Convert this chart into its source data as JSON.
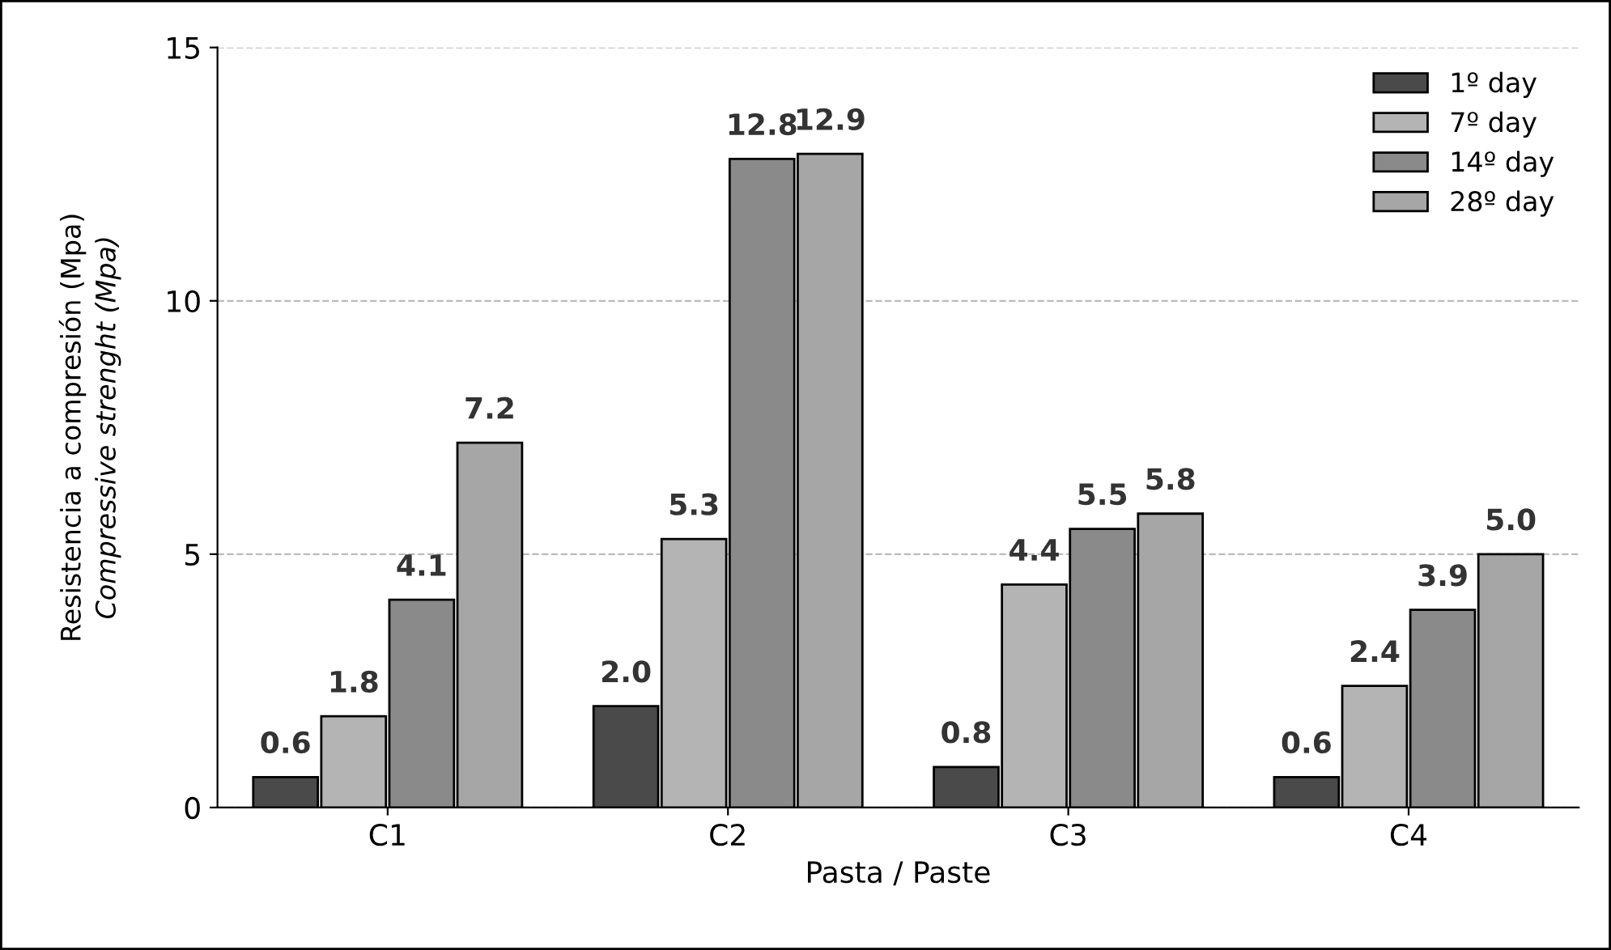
{
  "chart_data": {
    "type": "bar",
    "xlabel": "Pasta / Paste",
    "ylabel": "Resistencia a compresión (Mpa)\nCompressive strenght (Mpa)",
    "categories": [
      "C1",
      "C2",
      "C3",
      "C4"
    ],
    "series": [
      {
        "name": "1º day",
        "color": "#4a4a4a",
        "values": [
          0.6,
          2.0,
          0.8,
          0.6
        ],
        "value_labels": [
          "0.6",
          "2.0",
          "0.8",
          "0.6"
        ]
      },
      {
        "name": "7º day",
        "color": "#b4b4b4",
        "values": [
          1.8,
          5.3,
          4.4,
          2.4
        ],
        "value_labels": [
          "1.8",
          "5.3",
          "4.4",
          "2.4"
        ]
      },
      {
        "name": "14º day",
        "color": "#8a8a8a",
        "values": [
          4.1,
          12.8,
          5.5,
          3.9
        ],
        "value_labels": [
          "4.1",
          "12.8",
          "5.5",
          "3.9"
        ]
      },
      {
        "name": "28º day",
        "color": "#a6a6a6",
        "values": [
          7.2,
          12.9,
          5.8,
          5.0
        ],
        "value_labels": [
          "7.2",
          "12.9",
          "5.8",
          "5.0"
        ]
      }
    ],
    "ylim": [
      0,
      15
    ],
    "yticks": [
      0,
      5,
      10,
      15
    ],
    "grid": "y",
    "legend": "top right"
  }
}
